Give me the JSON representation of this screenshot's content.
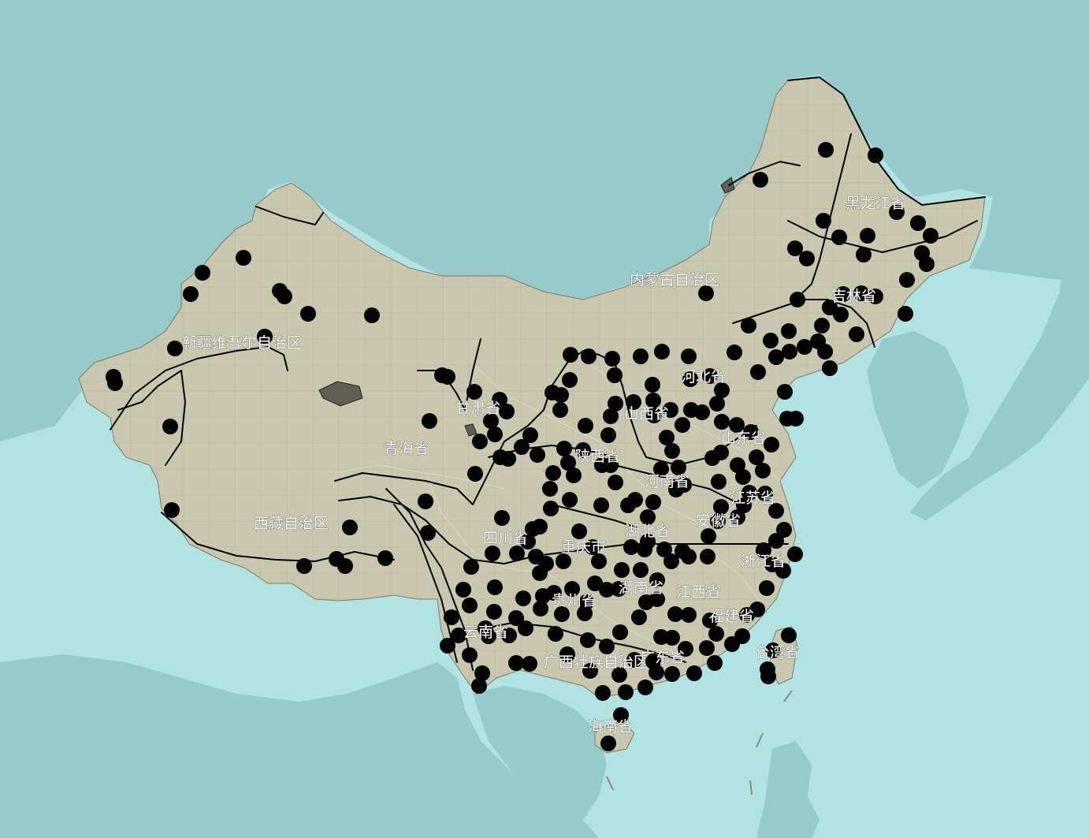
{
  "colors": {
    "ocean": "#b2e3e3",
    "neighbor_land": "#96cacb",
    "china_land": "#c9c8ae",
    "lake_fill": "#5f5f54",
    "dot": "#000000",
    "label_fill": "#ffffff"
  },
  "labels": [
    {
      "id": "heilongjiang",
      "text": "黑龙江省"
    },
    {
      "id": "neimenggu",
      "text": "内蒙古自治区"
    },
    {
      "id": "jilin",
      "text": "吉林省"
    },
    {
      "id": "xinjiang",
      "text": "新疆维吾尔自治区"
    },
    {
      "id": "gansu",
      "text": "甘肃省"
    },
    {
      "id": "hebei",
      "text": "河北省"
    },
    {
      "id": "shanxi",
      "text": "山西省"
    },
    {
      "id": "shandong",
      "text": "山东省"
    },
    {
      "id": "qinghai",
      "text": "青海省"
    },
    {
      "id": "shaanxi",
      "text": "陕西省"
    },
    {
      "id": "henan",
      "text": "河南省"
    },
    {
      "id": "jiangsu",
      "text": "江苏省"
    },
    {
      "id": "anhui",
      "text": "安徽省"
    },
    {
      "id": "xizang",
      "text": "西藏自治区"
    },
    {
      "id": "sichuan",
      "text": "四川省"
    },
    {
      "id": "chongqing",
      "text": "重庆市"
    },
    {
      "id": "hubei",
      "text": "湖北省"
    },
    {
      "id": "zhejiang",
      "text": "浙江省"
    },
    {
      "id": "guizhou",
      "text": "贵州省"
    },
    {
      "id": "hunan",
      "text": "湖南省"
    },
    {
      "id": "jiangxi",
      "text": "江西省"
    },
    {
      "id": "fujian",
      "text": "福建省"
    },
    {
      "id": "yunnan",
      "text": "云南省"
    },
    {
      "id": "guangxi",
      "text": "广西壮族自治区"
    },
    {
      "id": "guangdong",
      "text": "广东省"
    },
    {
      "id": "taiwan",
      "text": "台湾省"
    },
    {
      "id": "hainan",
      "text": "海南省"
    }
  ]
}
